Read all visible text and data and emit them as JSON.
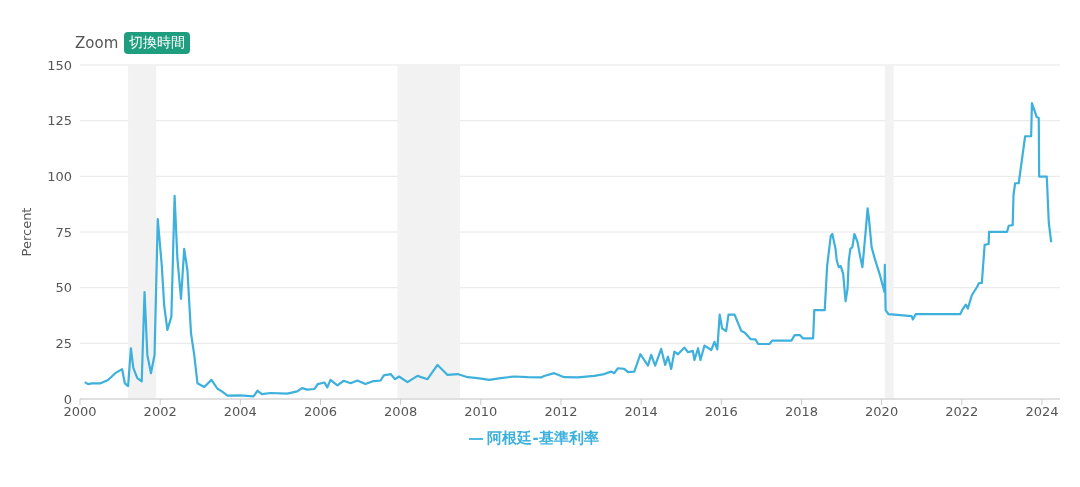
{
  "chart_data": {
    "type": "line",
    "ylabel": "Percent",
    "annotations": [
      "Zoom",
      "切換時間"
    ],
    "xlim": [
      2000,
      2024.45
    ],
    "xticks": [
      2000,
      2002,
      2004,
      2006,
      2008,
      2010,
      2012,
      2014,
      2016,
      2018,
      2020,
      2022,
      2024
    ],
    "ylim": [
      0,
      150
    ],
    "yticks": [
      0,
      25,
      50,
      75,
      100,
      125,
      150
    ],
    "grid": "y",
    "legend": "bottom",
    "marker": "none",
    "line_style": "solid",
    "bands": [
      {
        "axis": "x",
        "from": 2001.2,
        "to": 2001.9,
        "color": "#f2f2f2"
      },
      {
        "axis": "x",
        "from": 2007.92,
        "to": 2009.48,
        "color": "#f2f2f2"
      },
      {
        "axis": "x",
        "from": 2020.08,
        "to": 2020.3,
        "color": "#f2f2f2"
      }
    ],
    "series": [
      {
        "name": "阿根廷-基準利率",
        "color": "#3eb0dc",
        "x": [
          2000.12,
          2000.2,
          2000.3,
          2000.5,
          2000.7,
          2000.88,
          2001.05,
          2001.12,
          2001.2,
          2001.27,
          2001.33,
          2001.43,
          2001.54,
          2001.61,
          2001.68,
          2001.77,
          2001.86,
          2001.94,
          2002.04,
          2002.1,
          2002.18,
          2002.28,
          2002.36,
          2002.43,
          2002.52,
          2002.6,
          2002.68,
          2002.77,
          2002.85,
          2002.93,
          2003.1,
          2003.28,
          2003.43,
          2003.54,
          2003.68,
          2004.0,
          2004.33,
          2004.43,
          2004.54,
          2004.75,
          2005.17,
          2005.42,
          2005.54,
          2005.67,
          2005.85,
          2005.93,
          2006.1,
          2006.17,
          2006.25,
          2006.42,
          2006.58,
          2006.75,
          2006.92,
          2007.12,
          2007.29,
          2007.5,
          2007.58,
          2007.75,
          2007.86,
          2007.96,
          2008.17,
          2008.42,
          2008.67,
          2008.92,
          2009.17,
          2009.42,
          2009.67,
          2009.92,
          2010.21,
          2010.5,
          2010.83,
          2011.17,
          2011.5,
          2011.58,
          2011.83,
          2012.08,
          2012.42,
          2012.83,
          2013.08,
          2013.25,
          2013.33,
          2013.42,
          2013.58,
          2013.67,
          2013.83,
          2013.98,
          2014.17,
          2014.25,
          2014.35,
          2014.5,
          2014.6,
          2014.67,
          2014.75,
          2014.83,
          2014.92,
          2015.08,
          2015.17,
          2015.29,
          2015.33,
          2015.42,
          2015.48,
          2015.58,
          2015.75,
          2015.83,
          2015.9,
          2015.96,
          2016.02,
          2016.12,
          2016.18,
          2016.33,
          2016.5,
          2016.58,
          2016.73,
          2016.85,
          2016.92,
          2017.2,
          2017.27,
          2017.75,
          2017.83,
          2017.96,
          2018.04,
          2018.29,
          2018.32,
          2018.58,
          2018.64,
          2018.73,
          2018.77,
          2018.85,
          2018.88,
          2018.93,
          2018.98,
          2019.04,
          2019.1,
          2019.15,
          2019.18,
          2019.22,
          2019.27,
          2019.32,
          2019.4,
          2019.46,
          2019.52,
          2019.6,
          2019.65,
          2019.68,
          2019.75,
          2019.83,
          2019.96,
          2020.07,
          2020.08,
          2020.1,
          2020.17,
          2020.75,
          2020.78,
          2020.85,
          2021.96,
          2022.02,
          2022.1,
          2022.15,
          2022.25,
          2022.38,
          2022.43,
          2022.5,
          2022.57,
          2022.67,
          2022.68,
          2023.13,
          2023.17,
          2023.27,
          2023.29,
          2023.33,
          2023.42,
          2023.58,
          2023.73,
          2023.75,
          2023.87,
          2023.92,
          2023.93,
          2024.12,
          2024.17,
          2024.23
        ],
        "values": [
          7.6,
          6.7,
          7,
          7,
          8.5,
          11.6,
          13.4,
          7,
          5.8,
          22.8,
          14,
          9.4,
          7.9,
          48,
          19.8,
          11.6,
          19.8,
          80.8,
          60,
          42,
          31,
          37,
          91.2,
          63,
          45,
          67.4,
          57.7,
          29.5,
          19.8,
          7.1,
          5.4,
          8.6,
          4.6,
          3.4,
          1.5,
          1.6,
          1.2,
          3.7,
          2.2,
          2.7,
          2.4,
          3.4,
          4.9,
          4.2,
          4.5,
          6.7,
          7.4,
          5.2,
          8.6,
          6.1,
          8.2,
          7.1,
          8.3,
          6.7,
          7.9,
          8.3,
          10.6,
          11.2,
          8.9,
          10.1,
          7.6,
          10.4,
          8.9,
          15.3,
          10.8,
          11.2,
          9.8,
          9.4,
          8.6,
          9.4,
          10.1,
          9.8,
          9.7,
          10.3,
          11.6,
          9.8,
          9.7,
          10.4,
          11.2,
          12.3,
          11.6,
          13.8,
          13.5,
          12.1,
          12.3,
          20.1,
          15,
          19.8,
          15,
          22.5,
          15.3,
          19,
          13.5,
          21.3,
          20.1,
          23.1,
          21,
          21.6,
          17.5,
          22.8,
          17.5,
          24,
          22,
          25.7,
          22.3,
          37.9,
          31.7,
          30.5,
          37.9,
          37.9,
          30.5,
          29.9,
          26.9,
          26.8,
          24.7,
          24.7,
          26.2,
          26.2,
          28.7,
          28.7,
          27.2,
          27.2,
          39.9,
          39.9,
          59.7,
          73.1,
          74.1,
          67.4,
          62.2,
          59.2,
          59.7,
          56.2,
          43.9,
          49.6,
          62.2,
          67.4,
          68.2,
          74.1,
          70.4,
          64.4,
          59.2,
          74.9,
          85.6,
          81.6,
          68.2,
          62.9,
          55.5,
          48.1,
          60.3,
          39.9,
          38.1,
          37.2,
          35.7,
          38.1,
          38.1,
          40.3,
          42.4,
          40.6,
          46.6,
          50.3,
          52.1,
          52.1,
          69.2,
          69.6,
          75.1,
          75.1,
          77.8,
          78.1,
          91.5,
          96.9,
          96.9,
          118,
          118,
          132.9,
          126.6,
          126.2,
          99.9,
          99.9,
          79.3,
          70.4
        ]
      }
    ]
  }
}
